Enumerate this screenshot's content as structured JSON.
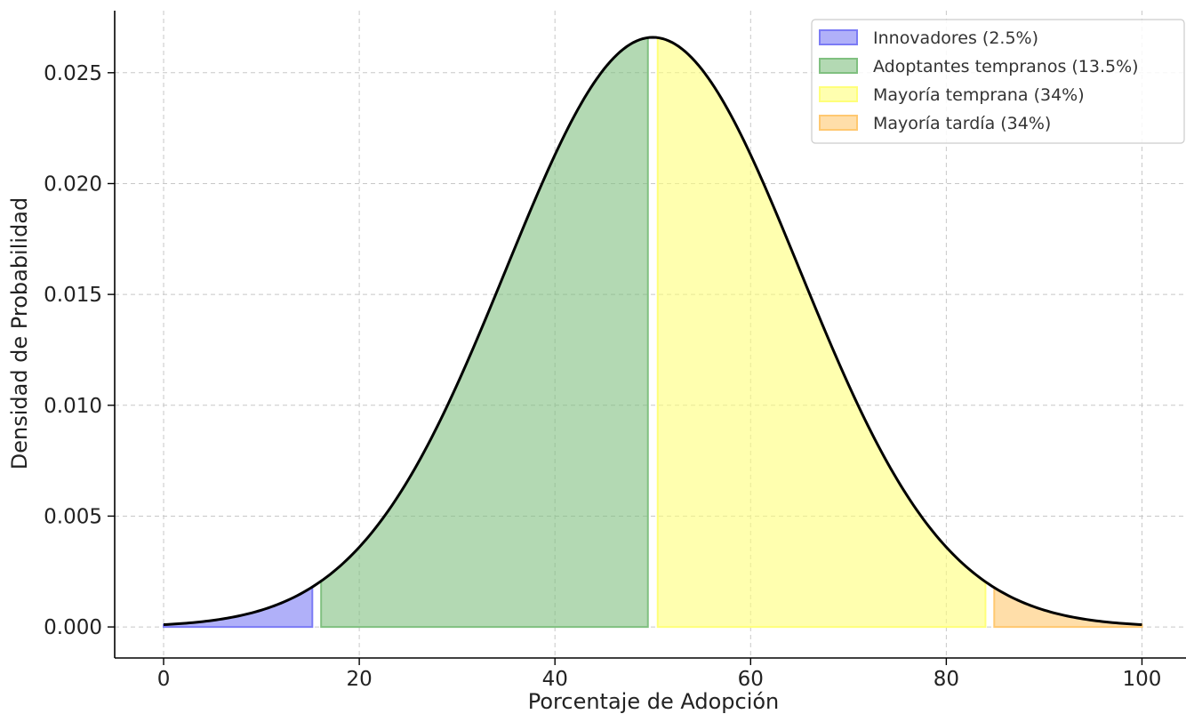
{
  "chart_data": {
    "type": "area",
    "title": "",
    "xlabel": "Porcentaje de Adopción",
    "ylabel": "Densidad de Probabilidad",
    "xlim": [
      -5,
      104.5
    ],
    "ylim": [
      -0.0014,
      0.0278
    ],
    "xticks": [
      0,
      20,
      40,
      60,
      80,
      100
    ],
    "yticks": [
      0.0,
      0.005,
      0.01,
      0.015,
      0.02,
      0.025
    ],
    "ytick_labels": [
      "0.000",
      "0.005",
      "0.010",
      "0.015",
      "0.020",
      "0.025"
    ],
    "grid": true,
    "legend_position": "top-right",
    "curve": {
      "distribution": "normal",
      "mean": 50,
      "std": 15,
      "x_range": [
        0,
        100
      ],
      "color": "#000000"
    },
    "series": [
      {
        "name": "Innovadores (2.5%)",
        "x_range": [
          0,
          15.2
        ],
        "color": "#7b7bf5"
      },
      {
        "name": "Adoptantes tempranos (13.5%)",
        "x_range": [
          16.1,
          49.5
        ],
        "color": "#80c080"
      },
      {
        "name": "Mayoría temprana (34%)",
        "x_range": [
          50.5,
          84
        ],
        "color": "#ffff7a"
      },
      {
        "name": "Mayoría tardía (34%)",
        "x_range": [
          84.9,
          100
        ],
        "color": "#ffc870"
      }
    ]
  }
}
